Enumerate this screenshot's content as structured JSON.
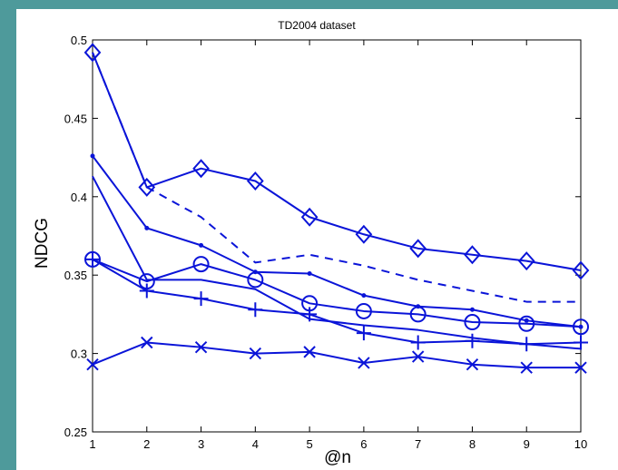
{
  "window": {
    "background_color": "#4e9a9b",
    "figure_background": "#ffffff"
  },
  "chart_data": {
    "type": "line",
    "title": "TD2004 dataset",
    "xlabel": "@n",
    "ylabel": "NDCG",
    "xlim": [
      1,
      10
    ],
    "ylim": [
      0.25,
      0.5
    ],
    "x_ticks": [
      "1",
      "2",
      "3",
      "4",
      "5",
      "6",
      "7",
      "8",
      "9",
      "10"
    ],
    "y_ticks": [
      "0.25",
      "0.3",
      "0.35",
      "0.4",
      "0.45",
      "0.5"
    ],
    "grid": false,
    "legend": "none",
    "color": "#0a14d8",
    "x": [
      1,
      2,
      3,
      4,
      5,
      6,
      7,
      8,
      9,
      10
    ],
    "series": [
      {
        "marker": "diamond",
        "dash": "solid",
        "values": [
          0.492,
          0.406,
          0.418,
          0.41,
          0.387,
          0.376,
          0.367,
          0.363,
          0.359,
          0.353
        ]
      },
      {
        "marker": "none",
        "dash": "dashed",
        "values": [
          0.492,
          0.406,
          0.387,
          0.358,
          0.363,
          0.356,
          0.347,
          0.34,
          0.333,
          0.333
        ]
      },
      {
        "marker": "dot",
        "dash": "solid",
        "values": [
          0.426,
          0.38,
          0.369,
          0.352,
          0.351,
          0.337,
          0.33,
          0.328,
          0.321,
          0.317
        ]
      },
      {
        "marker": "none",
        "dash": "solid",
        "values": [
          0.413,
          0.347,
          0.347,
          0.341,
          0.322,
          0.318,
          0.315,
          0.31,
          0.306,
          0.303
        ]
      },
      {
        "marker": "circle",
        "dash": "solid",
        "values": [
          0.36,
          0.346,
          0.357,
          0.347,
          0.332,
          0.327,
          0.325,
          0.32,
          0.319,
          0.317
        ]
      },
      {
        "marker": "plus",
        "dash": "solid",
        "values": [
          0.36,
          0.34,
          0.335,
          0.328,
          0.325,
          0.313,
          0.307,
          0.308,
          0.306,
          0.307
        ]
      },
      {
        "marker": "x",
        "dash": "solid",
        "values": [
          0.293,
          0.307,
          0.304,
          0.3,
          0.301,
          0.294,
          0.298,
          0.293,
          0.291,
          0.291
        ]
      }
    ]
  }
}
